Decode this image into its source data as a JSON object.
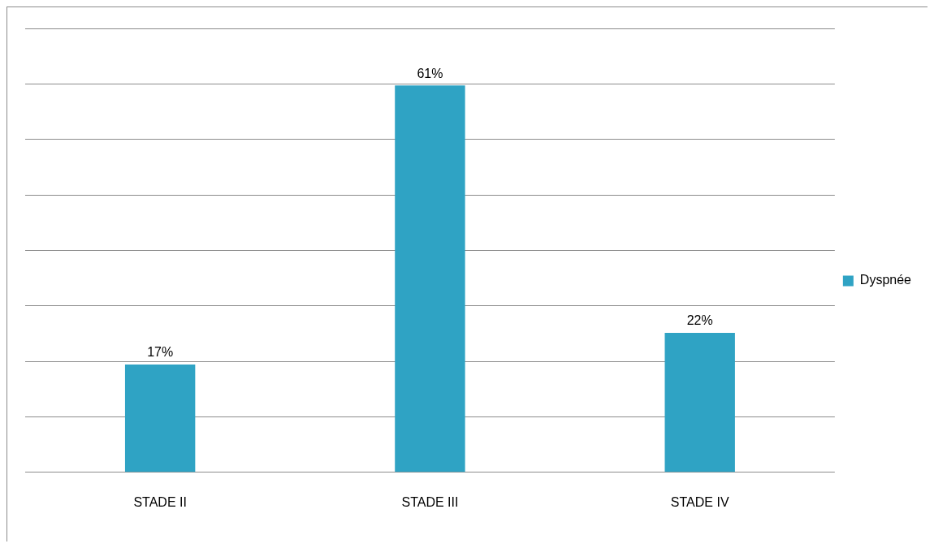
{
  "chart_data": {
    "type": "bar",
    "categories": [
      "STADE II",
      "STADE III",
      "STADE IV"
    ],
    "series": [
      {
        "name": "Dyspnée",
        "color": "#2fa3c4",
        "values": [
          17,
          61,
          22
        ],
        "value_labels": [
          "17%",
          "61%",
          "22%"
        ]
      }
    ],
    "ylim": [
      0,
      70
    ],
    "yticks": [
      0,
      {
        "value": 8.75,
        "label": null
      },
      {
        "value": 17.5,
        "label": null
      },
      {
        "value": 26.25,
        "label": null
      },
      {
        "value": 35,
        "label": null
      },
      {
        "value": 43.75,
        "label": null
      },
      {
        "value": 52.5,
        "label": null
      },
      {
        "value": 61.25,
        "label": null
      },
      {
        "value": 70,
        "label": null
      }
    ],
    "tick_labels": "x",
    "grid": "y",
    "legend": "right"
  }
}
